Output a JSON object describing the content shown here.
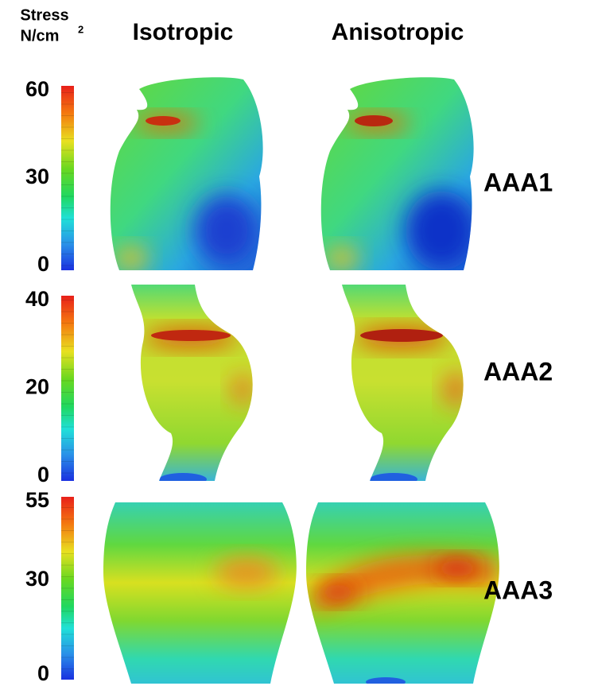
{
  "header": {
    "quantity": "Stress",
    "unit": "N/cm",
    "unit_power": "2",
    "columns": [
      "Isotropic",
      "Anisotropic"
    ]
  },
  "rows": [
    {
      "label": "AAA1",
      "ticks": [
        60,
        30,
        0
      ]
    },
    {
      "label": "AAA2",
      "ticks": [
        40,
        20,
        0
      ]
    },
    {
      "label": "AAA3",
      "ticks": [
        55,
        30,
        0
      ]
    }
  ]
}
